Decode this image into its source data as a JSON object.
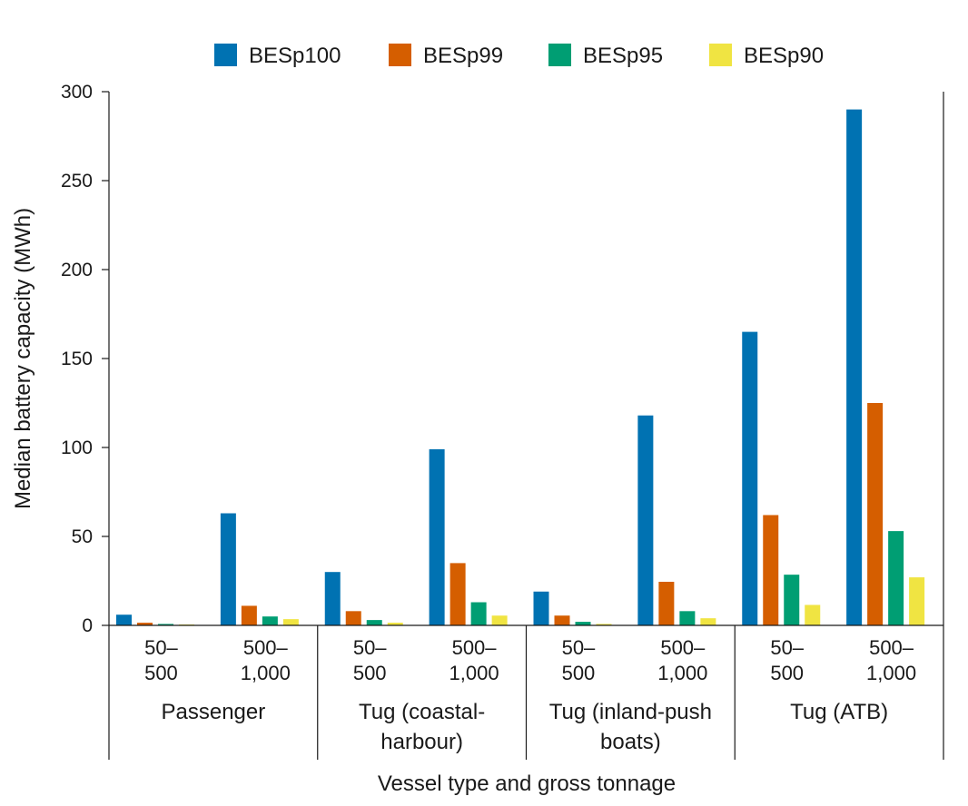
{
  "chart_data": {
    "type": "bar",
    "title": "",
    "xlabel": "Vessel type and gross tonnage",
    "ylabel": "Median battery capacity (MWh)",
    "ylim": [
      0,
      300
    ],
    "yticks": [
      0,
      50,
      100,
      150,
      200,
      250,
      300
    ],
    "legend_position": "top",
    "groups": [
      {
        "name": "Passenger",
        "name_lines": [
          "Passenger"
        ],
        "tonnage": [
          [
            "50–",
            "500"
          ],
          [
            "500–",
            "1,000"
          ]
        ]
      },
      {
        "name": "Tug (coastal-harbour)",
        "name_lines": [
          "Tug (coastal-",
          "harbour)"
        ],
        "tonnage": [
          [
            "50–",
            "500"
          ],
          [
            "500–",
            "1,000"
          ]
        ]
      },
      {
        "name": "Tug (inland-push boats)",
        "name_lines": [
          "Tug (inland-push",
          "boats)"
        ],
        "tonnage": [
          [
            "50–",
            "500"
          ],
          [
            "500–",
            "1,000"
          ]
        ]
      },
      {
        "name": "Tug (ATB)",
        "name_lines": [
          "Tug (ATB)"
        ],
        "tonnage": [
          [
            "50–",
            "500"
          ],
          [
            "500–",
            "1,000"
          ]
        ]
      }
    ],
    "categories": [
      "Passenger 50–500",
      "Passenger 500–1,000",
      "Tug (coastal-harbour) 50–500",
      "Tug (coastal-harbour) 500–1,000",
      "Tug (inland-push boats) 50–500",
      "Tug (inland-push boats) 500–1,000",
      "Tug (ATB) 50–500",
      "Tug (ATB) 500–1,000"
    ],
    "series": [
      {
        "name": "BESp100",
        "color": "#0072b2",
        "values": [
          6,
          63,
          30,
          99,
          19,
          118,
          165,
          290
        ]
      },
      {
        "name": "BESp99",
        "color": "#d55e00",
        "values": [
          1.5,
          11,
          8,
          35,
          5.5,
          24.5,
          62,
          125
        ]
      },
      {
        "name": "BESp95",
        "color": "#009e73",
        "values": [
          0.8,
          5,
          3,
          13,
          2,
          8,
          28.5,
          53
        ]
      },
      {
        "name": "BESp90",
        "color": "#f0e442",
        "values": [
          0.5,
          3.5,
          1.5,
          5.5,
          0.8,
          4,
          11.5,
          27
        ]
      }
    ]
  }
}
